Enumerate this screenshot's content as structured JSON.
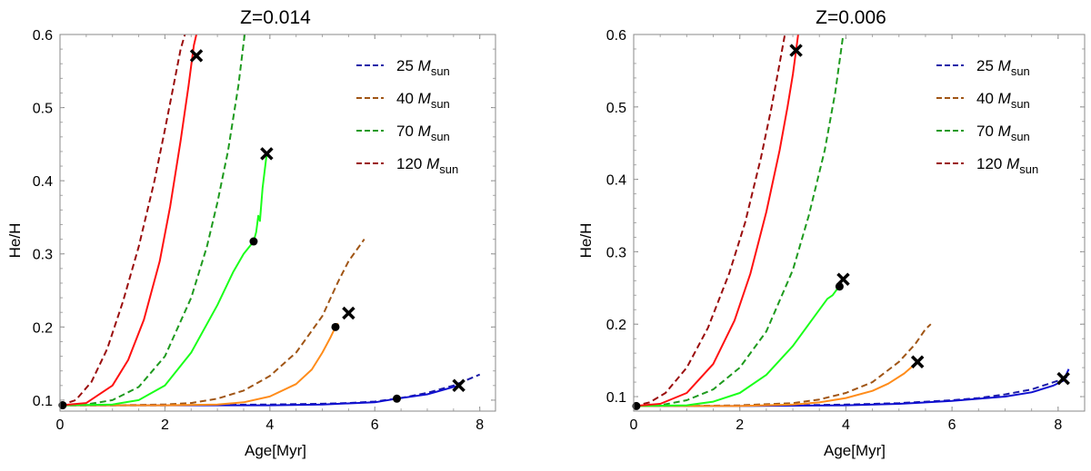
{
  "chart_data": [
    {
      "type": "line",
      "title": "Z=0.014",
      "xlabel": "Age[Myr]",
      "ylabel": "He/H",
      "xlim": [
        0,
        8.3
      ],
      "ylim": [
        0.085,
        0.6
      ],
      "xticks": [
        0,
        2,
        4,
        6,
        8
      ],
      "yticks": [
        0.1,
        0.2,
        0.3,
        0.4,
        0.5,
        0.6
      ],
      "legend_position": "top-right",
      "legend": [
        {
          "mass": "25",
          "unit_sym": "M",
          "unit_sub": "sun",
          "color": "#1a1aa8"
        },
        {
          "mass": "40",
          "unit_sym": "M",
          "unit_sub": "sun",
          "color": "#a05515"
        },
        {
          "mass": "70",
          "unit_sym": "M",
          "unit_sub": "sun",
          "color": "#1e9a1e"
        },
        {
          "mass": "120",
          "unit_sym": "M",
          "unit_sub": "sun",
          "color": "#9a0d0d"
        }
      ],
      "series": [
        {
          "name": "25 Msun dashed",
          "style": "dashed",
          "color": "#1a1aa8",
          "x": [
            0,
            1,
            2,
            3,
            4,
            5,
            5.5,
            6,
            6.5,
            7,
            7.5,
            8.0
          ],
          "y": [
            0.093,
            0.093,
            0.093,
            0.0935,
            0.094,
            0.095,
            0.096,
            0.098,
            0.103,
            0.11,
            0.12,
            0.135
          ]
        },
        {
          "name": "40 Msun dashed",
          "style": "dashed",
          "color": "#a05515",
          "x": [
            0,
            1,
            2,
            2.5,
            3,
            3.5,
            4,
            4.5,
            5,
            5.3,
            5.5,
            5.8
          ],
          "y": [
            0.093,
            0.093,
            0.094,
            0.096,
            0.102,
            0.113,
            0.133,
            0.165,
            0.215,
            0.262,
            0.29,
            0.32
          ]
        },
        {
          "name": "70 Msun dashed",
          "style": "dashed",
          "color": "#1e9a1e",
          "x": [
            0,
            0.5,
            1,
            1.5,
            2,
            2.5,
            2.8,
            3.0,
            3.2,
            3.4,
            3.52
          ],
          "y": [
            0.093,
            0.094,
            0.1,
            0.118,
            0.16,
            0.24,
            0.31,
            0.37,
            0.44,
            0.53,
            0.6
          ]
        },
        {
          "name": "120 Msun dashed",
          "style": "dashed",
          "color": "#9a0d0d",
          "x": [
            0,
            0.3,
            0.6,
            0.9,
            1.2,
            1.5,
            1.8,
            2.0,
            2.15,
            2.3,
            2.38
          ],
          "y": [
            0.093,
            0.1,
            0.125,
            0.17,
            0.235,
            0.31,
            0.4,
            0.47,
            0.525,
            0.58,
            0.6
          ]
        },
        {
          "name": "25 Msun",
          "style": "solid",
          "color": "#1010d0",
          "x": [
            0,
            1,
            2,
            3,
            4,
            5,
            6,
            6.42,
            7,
            7.6
          ],
          "y": [
            0.093,
            0.093,
            0.093,
            0.093,
            0.093,
            0.094,
            0.097,
            0.102,
            0.108,
            0.12
          ]
        },
        {
          "name": "40 Msun",
          "style": "solid",
          "color": "#ff8c1a",
          "x": [
            0,
            1,
            2,
            3,
            3.5,
            4,
            4.5,
            4.8,
            5.0,
            5.15,
            5.25,
            5.3
          ],
          "y": [
            0.093,
            0.093,
            0.093,
            0.094,
            0.097,
            0.105,
            0.122,
            0.142,
            0.165,
            0.185,
            0.2,
            0.205
          ]
        },
        {
          "name": "70 Msun",
          "style": "solid",
          "color": "#1aff1a",
          "x": [
            0,
            1,
            1.5,
            2,
            2.5,
            3.0,
            3.3,
            3.5,
            3.69,
            3.74,
            3.78,
            3.81,
            3.86,
            3.94
          ],
          "y": [
            0.093,
            0.094,
            0.1,
            0.12,
            0.165,
            0.23,
            0.275,
            0.3,
            0.317,
            0.33,
            0.352,
            0.345,
            0.39,
            0.437
          ]
        },
        {
          "name": "120 Msun",
          "style": "solid",
          "color": "#ff1010",
          "x": [
            0,
            0.5,
            1,
            1.3,
            1.6,
            1.9,
            2.1,
            2.3,
            2.45,
            2.55,
            2.6
          ],
          "y": [
            0.093,
            0.096,
            0.12,
            0.155,
            0.21,
            0.29,
            0.365,
            0.455,
            0.53,
            0.585,
            0.6
          ]
        }
      ],
      "dots": [
        {
          "x": 0.05,
          "y": 0.093
        },
        {
          "x": 6.42,
          "y": 0.102
        },
        {
          "x": 5.25,
          "y": 0.2
        },
        {
          "x": 3.69,
          "y": 0.317
        }
      ],
      "crosses": [
        {
          "x": 7.6,
          "y": 0.12
        },
        {
          "x": 5.5,
          "y": 0.219
        },
        {
          "x": 3.94,
          "y": 0.437
        },
        {
          "x": 2.6,
          "y": 0.571
        }
      ]
    },
    {
      "type": "line",
      "title": "Z=0.006",
      "xlabel": "Age[Myr]",
      "ylabel": "He/H",
      "xlim": [
        0,
        8.5
      ],
      "ylim": [
        0.08,
        0.6
      ],
      "xticks": [
        0,
        2,
        4,
        6,
        8
      ],
      "yticks": [
        0.1,
        0.2,
        0.3,
        0.4,
        0.5,
        0.6
      ],
      "legend_position": "top-right",
      "legend": [
        {
          "mass": "25",
          "unit_sym": "M",
          "unit_sub": "sun",
          "color": "#1a1aa8"
        },
        {
          "mass": "40",
          "unit_sym": "M",
          "unit_sub": "sun",
          "color": "#a05515"
        },
        {
          "mass": "70",
          "unit_sym": "M",
          "unit_sub": "sun",
          "color": "#1e9a1e"
        },
        {
          "mass": "120",
          "unit_sym": "M",
          "unit_sub": "sun",
          "color": "#9a0d0d"
        }
      ],
      "series": [
        {
          "name": "25 Msun dashed",
          "style": "dashed",
          "color": "#1a1aa8",
          "x": [
            0,
            1,
            2,
            3,
            4,
            5,
            6,
            6.5,
            7,
            7.5,
            8.0,
            8.2
          ],
          "y": [
            0.087,
            0.087,
            0.0875,
            0.088,
            0.089,
            0.091,
            0.095,
            0.098,
            0.103,
            0.11,
            0.122,
            0.128
          ]
        },
        {
          "name": "40 Msun dashed",
          "style": "dashed",
          "color": "#a05515",
          "x": [
            0,
            1,
            2,
            3,
            3.5,
            4,
            4.5,
            5.0,
            5.3,
            5.5,
            5.6
          ],
          "y": [
            0.087,
            0.087,
            0.088,
            0.091,
            0.096,
            0.105,
            0.12,
            0.148,
            0.172,
            0.193,
            0.2
          ]
        },
        {
          "name": "70 Msun dashed",
          "style": "dashed",
          "color": "#1e9a1e",
          "x": [
            0,
            0.5,
            1,
            1.5,
            2,
            2.5,
            3,
            3.3,
            3.6,
            3.8,
            3.95
          ],
          "y": [
            0.087,
            0.088,
            0.095,
            0.11,
            0.14,
            0.19,
            0.275,
            0.35,
            0.44,
            0.52,
            0.6
          ]
        },
        {
          "name": "120 Msun dashed",
          "style": "dashed",
          "color": "#9a0d0d",
          "x": [
            0,
            0.3,
            0.6,
            1.0,
            1.4,
            1.8,
            2.1,
            2.4,
            2.6,
            2.75,
            2.85
          ],
          "y": [
            0.087,
            0.092,
            0.105,
            0.14,
            0.195,
            0.27,
            0.34,
            0.43,
            0.5,
            0.56,
            0.6
          ]
        },
        {
          "name": "25 Msun",
          "style": "solid",
          "color": "#1010d0",
          "x": [
            0,
            1,
            2,
            3,
            4,
            5,
            6,
            7,
            7.5,
            7.9,
            8.1,
            8.2
          ],
          "y": [
            0.087,
            0.087,
            0.087,
            0.0875,
            0.088,
            0.09,
            0.094,
            0.1,
            0.106,
            0.115,
            0.122,
            0.138
          ]
        },
        {
          "name": "40 Msun",
          "style": "solid",
          "color": "#ff8c1a",
          "x": [
            0,
            1,
            2,
            3,
            3.5,
            4,
            4.5,
            4.8,
            5.1,
            5.35
          ],
          "y": [
            0.087,
            0.087,
            0.087,
            0.089,
            0.092,
            0.098,
            0.108,
            0.118,
            0.132,
            0.148
          ]
        },
        {
          "name": "70 Msun",
          "style": "solid",
          "color": "#1aff1a",
          "x": [
            0,
            1,
            1.5,
            2,
            2.5,
            3.0,
            3.3,
            3.5,
            3.65,
            3.75,
            3.85,
            3.92
          ],
          "y": [
            0.087,
            0.088,
            0.093,
            0.105,
            0.13,
            0.17,
            0.2,
            0.22,
            0.235,
            0.24,
            0.25,
            0.255
          ]
        },
        {
          "name": "120 Msun",
          "style": "solid",
          "color": "#ff1010",
          "x": [
            0,
            0.5,
            1,
            1.5,
            1.9,
            2.2,
            2.5,
            2.75,
            2.9,
            3.0,
            3.06,
            3.1
          ],
          "y": [
            0.087,
            0.09,
            0.105,
            0.145,
            0.205,
            0.27,
            0.355,
            0.44,
            0.5,
            0.545,
            0.578,
            0.6
          ]
        }
      ],
      "dots": [
        {
          "x": 0.05,
          "y": 0.087
        },
        {
          "x": 3.88,
          "y": 0.252
        }
      ],
      "crosses": [
        {
          "x": 8.1,
          "y": 0.125
        },
        {
          "x": 5.35,
          "y": 0.148
        },
        {
          "x": 3.95,
          "y": 0.262
        },
        {
          "x": 3.06,
          "y": 0.578
        }
      ]
    }
  ]
}
